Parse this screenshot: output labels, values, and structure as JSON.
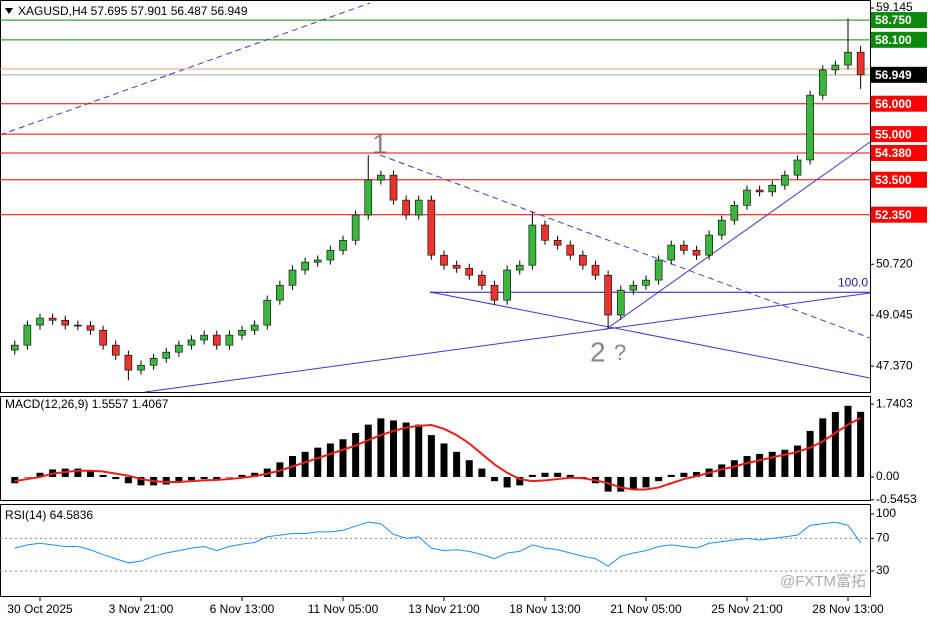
{
  "chart_data": [
    {
      "type": "candlestick",
      "title": "XAGUSD,H4 57.695 57.901 56.487 56.949",
      "categories": [
        null,
        null,
        "30 Oct 2025",
        null,
        null,
        null,
        null,
        null,
        null,
        null,
        "3 Nov 21:00",
        null,
        null,
        null,
        null,
        null,
        null,
        null,
        "6 Nov 13:00",
        null,
        null,
        null,
        null,
        null,
        null,
        null,
        "11 Nov 05:00",
        null,
        null,
        null,
        null,
        null,
        null,
        null,
        "13 Nov 21:00",
        null,
        null,
        null,
        null,
        null,
        null,
        null,
        "18 Nov 13:00",
        null,
        null,
        null,
        null,
        null,
        null,
        null,
        "21 Nov 05:00",
        null,
        null,
        null,
        null,
        null,
        null,
        null,
        "25 Nov 21:00",
        null,
        null,
        null,
        null,
        null,
        null,
        null,
        "28 Nov 13:00",
        null
      ],
      "open": [
        47.9,
        48.06,
        48.72,
        48.95,
        48.88,
        48.72,
        48.7,
        48.55,
        48.06,
        47.73,
        47.24,
        47.4,
        47.63,
        47.83,
        48.06,
        48.23,
        48.39,
        48.06,
        48.39,
        48.55,
        48.72,
        49.54,
        50.03,
        50.53,
        50.79,
        50.86,
        51.18,
        51.51,
        52.34,
        53.49,
        53.65,
        52.83,
        52.34,
        52.83,
        51.02,
        50.69,
        50.59,
        50.36,
        50.03,
        49.54,
        50.53,
        50.69,
        52.01,
        51.51,
        51.35,
        51.02,
        50.69,
        50.36,
        49.05,
        49.87,
        50.03,
        50.2,
        50.86,
        51.35,
        51.18,
        51.02,
        51.68,
        52.17,
        52.66,
        53.16,
        53.1,
        53.32,
        53.65,
        54.15,
        56.28,
        57.11,
        57.27,
        57.695
      ],
      "high": [
        48.21,
        48.87,
        49.1,
        49.1,
        49.03,
        48.87,
        48.85,
        48.7,
        48.21,
        47.88,
        47.55,
        47.78,
        47.98,
        48.21,
        48.38,
        48.54,
        48.54,
        48.54,
        48.7,
        48.87,
        49.69,
        50.18,
        50.68,
        50.94,
        51.01,
        51.33,
        51.66,
        52.49,
        54.31,
        53.8,
        53.8,
        52.98,
        52.98,
        52.98,
        51.17,
        50.84,
        50.74,
        50.51,
        50.18,
        50.68,
        50.84,
        52.44,
        52.16,
        51.66,
        51.5,
        51.17,
        50.84,
        50.51,
        50.02,
        50.18,
        50.35,
        51.01,
        51.5,
        51.5,
        51.33,
        51.83,
        52.32,
        52.81,
        53.31,
        53.31,
        53.47,
        53.8,
        54.3,
        56.43,
        57.26,
        57.42,
        58.8,
        57.901
      ],
      "low": [
        47.75,
        47.91,
        48.57,
        48.73,
        48.57,
        48.55,
        48.4,
        47.91,
        47.58,
        46.91,
        47.09,
        47.25,
        47.48,
        47.68,
        47.91,
        48.08,
        47.91,
        47.91,
        48.24,
        48.4,
        48.57,
        49.39,
        49.88,
        50.38,
        50.64,
        50.71,
        51.03,
        51.36,
        52.19,
        53.34,
        52.68,
        52.19,
        52.19,
        50.87,
        50.54,
        50.44,
        50.21,
        49.88,
        49.39,
        49.39,
        50.38,
        50.54,
        51.36,
        51.2,
        50.87,
        50.54,
        50.21,
        48.62,
        48.9,
        49.72,
        49.88,
        50.05,
        50.71,
        51.03,
        50.87,
        50.87,
        51.53,
        52.02,
        52.51,
        52.95,
        52.95,
        53.17,
        53.5,
        54.0,
        56.13,
        56.96,
        57.12,
        56.487
      ],
      "close": [
        48.06,
        48.72,
        48.95,
        48.88,
        48.72,
        48.7,
        48.55,
        48.06,
        47.73,
        47.24,
        47.4,
        47.63,
        47.83,
        48.06,
        48.23,
        48.39,
        48.06,
        48.39,
        48.55,
        48.72,
        49.54,
        50.03,
        50.53,
        50.79,
        50.86,
        51.18,
        51.51,
        52.34,
        53.49,
        53.65,
        52.83,
        52.34,
        52.83,
        51.02,
        50.69,
        50.59,
        50.36,
        50.03,
        49.54,
        50.53,
        50.69,
        52.01,
        51.51,
        51.35,
        51.02,
        50.69,
        50.36,
        49.05,
        49.87,
        50.03,
        50.2,
        50.86,
        51.35,
        51.18,
        51.02,
        51.68,
        52.17,
        52.66,
        53.16,
        53.1,
        53.32,
        53.65,
        54.15,
        56.28,
        57.11,
        57.27,
        57.695,
        56.949
      ],
      "up_color": "#3cb53c",
      "down_color": "#e8352e",
      "wick_color": "#000000",
      "ylim": [
        46.52,
        59.41
      ],
      "yticks": [
        59.145,
        {
          "value": 50.72,
          "label": "50.720"
        },
        49.045,
        {
          "value": 47.37,
          "label": "47.370"
        }
      ],
      "levels": [
        {
          "value": 58.75,
          "label": "58.750",
          "color": "#0a8a0a"
        },
        {
          "value": 58.1,
          "label": "58.100",
          "color": "#0a8a0a"
        },
        {
          "value": 56.949,
          "label": "56.949",
          "color": "#000000"
        },
        {
          "value": 56,
          "label": "56.000",
          "color": "#ff0000"
        },
        {
          "value": 55,
          "label": "55.000",
          "color": "#ff0000"
        },
        {
          "value": 54.38,
          "label": "54.380",
          "color": "#ff0000"
        },
        {
          "value": 53.5,
          "label": "53.500",
          "color": "#ff0000"
        },
        {
          "value": 52.35,
          "label": "52.350",
          "color": "#ff0000"
        }
      ],
      "fibo": {
        "value": 49.8,
        "label": "100.0",
        "color": "#1a1aa8"
      },
      "annotations": [
        "1",
        "2",
        "?"
      ]
    },
    {
      "type": "combo",
      "title": "MACD(12,26,9) 1.5557 1.4067",
      "ylim": [
        -0.55,
        1.91
      ],
      "yticks": [
        1.7403,
        {
          "value": 0,
          "label": "0.00"
        },
        -0.5453
      ],
      "series": [
        {
          "kind": "bar",
          "color": "#000000",
          "values": [
            -0.15,
            0.0,
            0.1,
            0.18,
            0.2,
            0.2,
            0.15,
            0.05,
            -0.05,
            -0.15,
            -0.2,
            -0.2,
            -0.18,
            -0.12,
            -0.08,
            -0.05,
            -0.05,
            0.0,
            0.05,
            0.1,
            0.2,
            0.35,
            0.5,
            0.6,
            0.7,
            0.8,
            0.9,
            1.05,
            1.25,
            1.4,
            1.35,
            1.3,
            1.25,
            1.0,
            0.8,
            0.6,
            0.4,
            0.2,
            -0.1,
            -0.25,
            -0.2,
            0.05,
            0.1,
            0.1,
            0.05,
            -0.05,
            -0.15,
            -0.35,
            -0.35,
            -0.3,
            -0.25,
            -0.1,
            0.05,
            0.1,
            0.12,
            0.2,
            0.3,
            0.4,
            0.5,
            0.55,
            0.6,
            0.65,
            0.75,
            1.1,
            1.4,
            1.55,
            1.7,
            1.5557
          ]
        },
        {
          "kind": "line",
          "color": "#e8201c",
          "values": [
            -0.1,
            -0.05,
            0.0,
            0.08,
            0.12,
            0.15,
            0.15,
            0.13,
            0.08,
            0.03,
            -0.05,
            -0.1,
            -0.12,
            -0.12,
            -0.1,
            -0.08,
            -0.07,
            -0.05,
            -0.02,
            0.02,
            0.08,
            0.15,
            0.25,
            0.35,
            0.45,
            0.55,
            0.65,
            0.75,
            0.88,
            1.0,
            1.1,
            1.18,
            1.22,
            1.24,
            1.15,
            1.0,
            0.8,
            0.55,
            0.3,
            0.1,
            -0.05,
            -0.1,
            -0.08,
            -0.05,
            -0.02,
            -0.03,
            -0.08,
            -0.15,
            -0.25,
            -0.3,
            -0.3,
            -0.25,
            -0.15,
            -0.05,
            0.02,
            0.1,
            0.18,
            0.25,
            0.33,
            0.4,
            0.47,
            0.53,
            0.6,
            0.7,
            0.85,
            1.05,
            1.25,
            1.4067
          ]
        }
      ]
    },
    {
      "type": "line",
      "title": "RSI(14) 64.5836",
      "color": "#1e90ff",
      "ylim": [
        -2,
        111
      ],
      "yticks": [
        100,
        70,
        30
      ],
      "levels": [
        70,
        30
      ],
      "values": [
        58,
        62,
        64,
        62,
        60,
        60,
        56,
        50,
        45,
        40,
        42,
        48,
        52,
        55,
        58,
        60,
        55,
        60,
        63,
        65,
        72,
        74,
        76,
        76,
        78,
        78,
        80,
        85,
        90,
        88,
        75,
        70,
        72,
        58,
        55,
        56,
        54,
        50,
        45,
        52,
        54,
        62,
        58,
        56,
        52,
        48,
        45,
        36,
        48,
        52,
        55,
        60,
        62,
        60,
        58,
        64,
        66,
        68,
        70,
        68,
        70,
        72,
        74,
        86,
        88,
        90,
        86,
        64.5836
      ]
    }
  ],
  "watermark": "@FXTM富拓"
}
